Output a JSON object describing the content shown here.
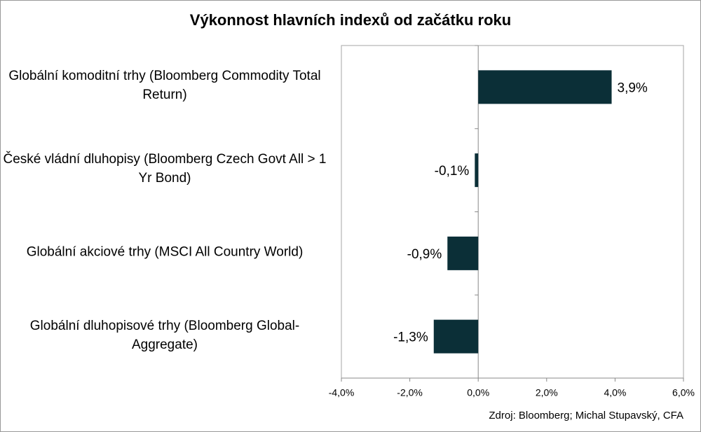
{
  "chart_data": {
    "type": "barh",
    "title": "Výkonnost hlavních indexů od začátku roku",
    "categories": [
      "Globální komoditní trhy (Bloomberg Commodity Total Return)",
      "České vládní dluhopisy (Bloomberg Czech Govt All > 1 Yr Bond)",
      "Globální akciové trhy (MSCI All Country World)",
      "Globální dluhopisové trhy (Bloomberg Global-Aggregate)"
    ],
    "values": [
      3.9,
      -0.1,
      -0.9,
      -1.3
    ],
    "value_labels": [
      "3,9%",
      "-0,1%",
      "-0,9%",
      "-1,3%"
    ],
    "color": "#0b2f37",
    "xlim": [
      -4,
      6
    ],
    "xticks": [
      {
        "value": -4,
        "label": "-4,0%"
      },
      {
        "value": -2,
        "label": "-2,0%"
      },
      {
        "value": 0,
        "label": "0,0%"
      },
      {
        "value": 2,
        "label": "2,0%"
      },
      {
        "value": 4,
        "label": "4,0%"
      },
      {
        "value": 6,
        "label": "6,0%"
      }
    ],
    "source": "Zdroj: Bloomberg; Michal Stupavský,  CFA"
  }
}
